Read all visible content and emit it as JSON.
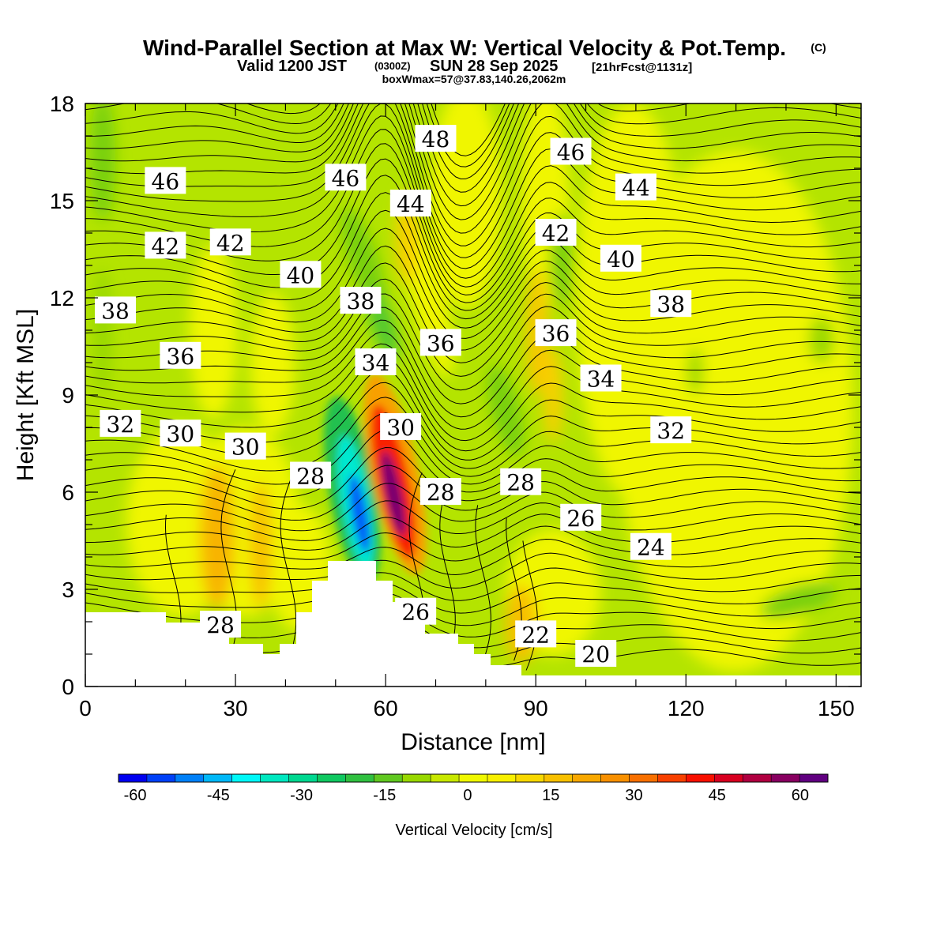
{
  "title": {
    "main": "Wind-Parallel Section at Max W: Vertical Velocity & Pot.Temp.",
    "copyright": "(C)",
    "valid_prefix": "Valid 1200 JST",
    "valid_utc": "(0300Z)",
    "valid_date": "SUN 28 Sep 2025",
    "forecast": "[21hrFcst@1131z]",
    "box_info": "boxWmax=57@37.83,140.26,2062m"
  },
  "chart_data": {
    "type": "heatmap",
    "xlabel": "Distance [nm]",
    "ylabel": "Height [Kft MSL]",
    "xlim": [
      0,
      155
    ],
    "ylim": [
      0,
      18
    ],
    "x_ticks": [
      0,
      30,
      60,
      90,
      120,
      150
    ],
    "y_ticks": [
      0,
      3,
      6,
      9,
      12,
      15,
      18
    ],
    "colorbar": {
      "label": "Vertical Velocity [cm/s]",
      "tick_labels": [
        "-60",
        "-45",
        "-30",
        "-15",
        "0",
        "15",
        "30",
        "45",
        "60"
      ],
      "tick_values": [
        -60,
        -45,
        -30,
        -15,
        0,
        15,
        30,
        45,
        60
      ],
      "range": [
        -63,
        65
      ],
      "colors": [
        "#0000f0",
        "#0040f8",
        "#0080f8",
        "#00b8f8",
        "#00f8f8",
        "#00e8c0",
        "#00d890",
        "#10c860",
        "#30c040",
        "#60c820",
        "#98d800",
        "#c8e800",
        "#f0f800",
        "#f8f000",
        "#f8d800",
        "#f8c000",
        "#f8a800",
        "#f89000",
        "#f87000",
        "#f84000",
        "#f81000",
        "#d80020",
        "#b00040",
        "#880060",
        "#600080"
      ]
    },
    "field": "vertical velocity (cm/s), shaded",
    "contour_field": "potential temperature (°C), contoured",
    "contour_labels": [
      {
        "text": "48",
        "x": 70,
        "y": 16.9
      },
      {
        "text": "46",
        "x": 16,
        "y": 15.6
      },
      {
        "text": "46",
        "x": 52,
        "y": 15.7
      },
      {
        "text": "46",
        "x": 97,
        "y": 16.5
      },
      {
        "text": "44",
        "x": 65,
        "y": 14.9
      },
      {
        "text": "44",
        "x": 110,
        "y": 15.4
      },
      {
        "text": "42",
        "x": 16,
        "y": 13.6
      },
      {
        "text": "42",
        "x": 29,
        "y": 13.7
      },
      {
        "text": "42",
        "x": 94,
        "y": 14.0
      },
      {
        "text": "40",
        "x": 43,
        "y": 12.7
      },
      {
        "text": "40",
        "x": 107,
        "y": 13.2
      },
      {
        "text": "38",
        "x": 6,
        "y": 11.6
      },
      {
        "text": "38",
        "x": 55,
        "y": 11.9
      },
      {
        "text": "38",
        "x": 117,
        "y": 11.8
      },
      {
        "text": "36",
        "x": 19,
        "y": 10.2
      },
      {
        "text": "36",
        "x": 71,
        "y": 10.6
      },
      {
        "text": "36",
        "x": 94,
        "y": 10.9
      },
      {
        "text": "34",
        "x": 58,
        "y": 10.0
      },
      {
        "text": "34",
        "x": 103,
        "y": 9.5
      },
      {
        "text": "32",
        "x": 7,
        "y": 8.1
      },
      {
        "text": "32",
        "x": 117,
        "y": 7.9
      },
      {
        "text": "30",
        "x": 19,
        "y": 7.8
      },
      {
        "text": "30",
        "x": 32,
        "y": 7.4
      },
      {
        "text": "30",
        "x": 63,
        "y": 8.0
      },
      {
        "text": "28",
        "x": 45,
        "y": 6.5
      },
      {
        "text": "28",
        "x": 71,
        "y": 6.0
      },
      {
        "text": "28",
        "x": 87,
        "y": 6.3
      },
      {
        "text": "28",
        "x": 27,
        "y": 1.9
      },
      {
        "text": "26",
        "x": 99,
        "y": 5.2
      },
      {
        "text": "26",
        "x": 66,
        "y": 2.3
      },
      {
        "text": "24",
        "x": 113,
        "y": 4.3
      },
      {
        "text": "22",
        "x": 90,
        "y": 1.6
      },
      {
        "text": "20",
        "x": 102,
        "y": 1.0
      }
    ]
  }
}
